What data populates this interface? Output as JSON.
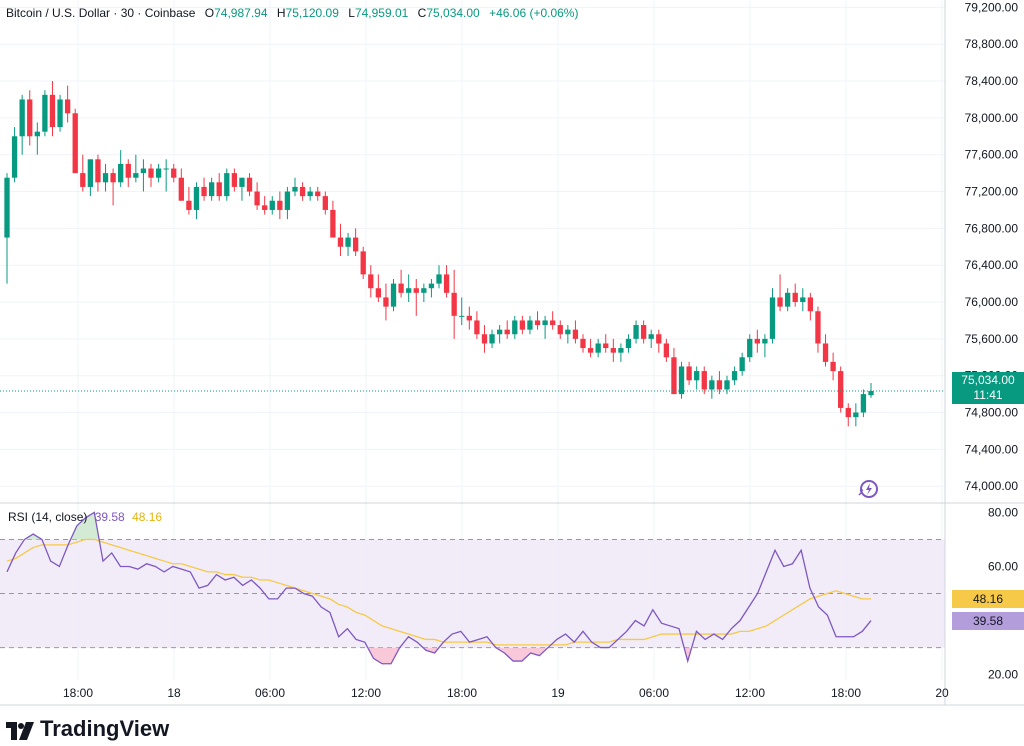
{
  "header": {
    "symbol": "Bitcoin / U.S. Dollar · 30 · Coinbase",
    "open_label": "O",
    "open": "74,987.94",
    "high_label": "H",
    "high": "75,120.09",
    "low_label": "L",
    "low": "74,959.01",
    "close_label": "C",
    "close": "75,034.00",
    "change": "+46.06 (+0.06%)"
  },
  "price_tag": {
    "price": "75,034.00",
    "countdown": "11:41"
  },
  "rsi_legend": {
    "label": "RSI (14, close)",
    "rsi": "39.58",
    "ma": "48.16"
  },
  "rsi_tags": {
    "ma": "48.16",
    "rsi": "39.58"
  },
  "brand": "TradingView",
  "colors": {
    "up": "#089981",
    "down": "#f23645",
    "rsi": "#7e57c2",
    "rsi_ma": "#f7c948",
    "band": "#ede7f6"
  },
  "chart_data": [
    {
      "type": "candlestick",
      "title": "Bitcoin / U.S. Dollar · 30 · Coinbase",
      "y_ticks": [
        "79,200.00",
        "78,800.00",
        "78,400.00",
        "78,000.00",
        "77,600.00",
        "77,200.00",
        "76,800.00",
        "76,400.00",
        "76,000.00",
        "75,600.00",
        "75,200.00",
        "74,800.00",
        "74,400.00",
        "74,000.00"
      ],
      "ylim": [
        73850,
        79280
      ],
      "x_ticks": [
        "18:00",
        "18",
        "06:00",
        "12:00",
        "18:00",
        "19",
        "06:00",
        "12:00",
        "18:00",
        "20"
      ],
      "last_price": 75034,
      "candles": [
        [
          76700,
          77400,
          76200,
          77350
        ],
        [
          77350,
          77900,
          77300,
          77800
        ],
        [
          77800,
          78250,
          77600,
          78200
        ],
        [
          78200,
          78300,
          77700,
          77800
        ],
        [
          77800,
          77950,
          77600,
          77850
        ],
        [
          77850,
          78300,
          77800,
          78250
        ],
        [
          78250,
          78400,
          77800,
          77900
        ],
        [
          77900,
          78250,
          77850,
          78200
        ],
        [
          78200,
          78350,
          77950,
          78050
        ],
        [
          78050,
          78100,
          77400,
          77400
        ],
        [
          77400,
          77600,
          77200,
          77250
        ],
        [
          77250,
          77550,
          77150,
          77550
        ],
        [
          77550,
          77600,
          77200,
          77300
        ],
        [
          77300,
          77500,
          77200,
          77400
        ],
        [
          77400,
          77450,
          77050,
          77300
        ],
        [
          77300,
          77650,
          77250,
          77500
        ],
        [
          77500,
          77550,
          77250,
          77350
        ],
        [
          77350,
          77600,
          77300,
          77400
        ],
        [
          77400,
          77550,
          77200,
          77450
        ],
        [
          77450,
          77500,
          77250,
          77350
        ],
        [
          77350,
          77500,
          77300,
          77450
        ],
        [
          77450,
          77550,
          77200,
          77450
        ],
        [
          77450,
          77500,
          77300,
          77350
        ],
        [
          77350,
          77450,
          77100,
          77100
        ],
        [
          77100,
          77250,
          76950,
          77000
        ],
        [
          77000,
          77300,
          76900,
          77250
        ],
        [
          77250,
          77350,
          77100,
          77150
        ],
        [
          77150,
          77350,
          77100,
          77300
        ],
        [
          77300,
          77400,
          77100,
          77150
        ],
        [
          77150,
          77450,
          77100,
          77400
        ],
        [
          77400,
          77450,
          77200,
          77250
        ],
        [
          77250,
          77350,
          77100,
          77350
        ],
        [
          77350,
          77400,
          77150,
          77200
        ],
        [
          77200,
          77300,
          77000,
          77050
        ],
        [
          77050,
          77150,
          76950,
          77000
        ],
        [
          77000,
          77150,
          76950,
          77100
        ],
        [
          77100,
          77200,
          76900,
          77000
        ],
        [
          77000,
          77250,
          76900,
          77200
        ],
        [
          77200,
          77350,
          77150,
          77250
        ],
        [
          77250,
          77300,
          77100,
          77150
        ],
        [
          77150,
          77250,
          77100,
          77200
        ],
        [
          77200,
          77250,
          77100,
          77150
        ],
        [
          77150,
          77200,
          76950,
          77000
        ],
        [
          77000,
          77100,
          76700,
          76700
        ],
        [
          76700,
          76850,
          76500,
          76600
        ],
        [
          76600,
          76750,
          76500,
          76700
        ],
        [
          76700,
          76800,
          76500,
          76550
        ],
        [
          76550,
          76600,
          76250,
          76300
        ],
        [
          76300,
          76400,
          76050,
          76150
        ],
        [
          76150,
          76300,
          76000,
          76050
        ],
        [
          76050,
          76200,
          75800,
          75950
        ],
        [
          75950,
          76250,
          75900,
          76200
        ],
        [
          76200,
          76350,
          76050,
          76100
        ],
        [
          76100,
          76300,
          76000,
          76150
        ],
        [
          76150,
          76250,
          75850,
          76100
        ],
        [
          76100,
          76200,
          76000,
          76150
        ],
        [
          76150,
          76250,
          76050,
          76200
        ],
        [
          76200,
          76400,
          76150,
          76300
        ],
        [
          76300,
          76400,
          76050,
          76100
        ],
        [
          76100,
          76350,
          75600,
          75850
        ],
        [
          75850,
          76050,
          75750,
          75850
        ],
        [
          75850,
          75950,
          75700,
          75800
        ],
        [
          75800,
          75900,
          75600,
          75650
        ],
        [
          75650,
          75750,
          75450,
          75550
        ],
        [
          75550,
          75700,
          75500,
          75650
        ],
        [
          75650,
          75750,
          75550,
          75700
        ],
        [
          75700,
          75800,
          75600,
          75650
        ],
        [
          75650,
          75850,
          75600,
          75800
        ],
        [
          75800,
          75850,
          75650,
          75700
        ],
        [
          75700,
          75850,
          75650,
          75800
        ],
        [
          75800,
          75900,
          75700,
          75750
        ],
        [
          75750,
          75850,
          75600,
          75800
        ],
        [
          75800,
          75900,
          75700,
          75750
        ],
        [
          75750,
          75800,
          75600,
          75650
        ],
        [
          75650,
          75750,
          75550,
          75700
        ],
        [
          75700,
          75800,
          75550,
          75600
        ],
        [
          75600,
          75650,
          75450,
          75500
        ],
        [
          75500,
          75600,
          75400,
          75450
        ],
        [
          75450,
          75600,
          75400,
          75550
        ],
        [
          75550,
          75650,
          75450,
          75500
        ],
        [
          75500,
          75600,
          75350,
          75450
        ],
        [
          75450,
          75550,
          75350,
          75500
        ],
        [
          75500,
          75650,
          75450,
          75600
        ],
        [
          75600,
          75800,
          75550,
          75750
        ],
        [
          75750,
          75800,
          75550,
          75600
        ],
        [
          75600,
          75700,
          75500,
          75650
        ],
        [
          75650,
          75700,
          75450,
          75550
        ],
        [
          75550,
          75600,
          75350,
          75400
        ],
        [
          75400,
          75500,
          75000,
          75000
        ],
        [
          75000,
          75350,
          74950,
          75300
        ],
        [
          75300,
          75350,
          75100,
          75150
        ],
        [
          75150,
          75300,
          75050,
          75250
        ],
        [
          75250,
          75300,
          75000,
          75050
        ],
        [
          75050,
          75200,
          74950,
          75150
        ],
        [
          75150,
          75250,
          75000,
          75050
        ],
        [
          75050,
          75200,
          75000,
          75150
        ],
        [
          75150,
          75300,
          75100,
          75250
        ],
        [
          75250,
          75450,
          75200,
          75400
        ],
        [
          75400,
          75650,
          75350,
          75600
        ],
        [
          75600,
          75700,
          75450,
          75550
        ],
        [
          75550,
          75650,
          75400,
          75600
        ],
        [
          75600,
          76150,
          75550,
          76050
        ],
        [
          76050,
          76300,
          75900,
          75950
        ],
        [
          75950,
          76150,
          75900,
          76100
        ],
        [
          76100,
          76200,
          75950,
          76000
        ],
        [
          76000,
          76150,
          75900,
          76050
        ],
        [
          76050,
          76100,
          75800,
          75900
        ],
        [
          75900,
          75950,
          75450,
          75550
        ],
        [
          75550,
          75650,
          75300,
          75350
        ],
        [
          75350,
          75450,
          75150,
          75250
        ],
        [
          75250,
          75300,
          74800,
          74850
        ],
        [
          74850,
          74900,
          74650,
          74750
        ],
        [
          74750,
          74900,
          74650,
          74800
        ],
        [
          74800,
          75050,
          74750,
          75000
        ],
        [
          74988,
          75120,
          74959,
          75034
        ]
      ]
    },
    {
      "type": "line",
      "title": "RSI (14, close)",
      "y_ticks": [
        "80.00",
        "60.00",
        "40.00",
        "20.00"
      ],
      "ylim": [
        18,
        82
      ],
      "bands": [
        70,
        50,
        30
      ],
      "series": [
        {
          "name": "RSI",
          "values": [
            58,
            65,
            70,
            72,
            70,
            62,
            60,
            68,
            75,
            78,
            80,
            62,
            65,
            60,
            60,
            59,
            61,
            60,
            58,
            60,
            59,
            58,
            52,
            53,
            57,
            55,
            56,
            53,
            55,
            52,
            48,
            48,
            52,
            52,
            50,
            49,
            45,
            43,
            34,
            37,
            33,
            32,
            26,
            24,
            24,
            30,
            34,
            32,
            29,
            28,
            32,
            35,
            36,
            32,
            33,
            34,
            30,
            28,
            25,
            25,
            28,
            27,
            30,
            33,
            35,
            32,
            36,
            32,
            30,
            30,
            33,
            36,
            40,
            38,
            44,
            39,
            38,
            37,
            25,
            36,
            33,
            35,
            33,
            37,
            40,
            45,
            50,
            58,
            66,
            60,
            61,
            66,
            52,
            45,
            42,
            34,
            34,
            34,
            36,
            40
          ]
        },
        {
          "name": "MA",
          "values": [
            62,
            63,
            65,
            67,
            68,
            68,
            68,
            68,
            69,
            70,
            70,
            69,
            68,
            67,
            66,
            65,
            64,
            63,
            62,
            61,
            61,
            60,
            59,
            58,
            58,
            57,
            57,
            56,
            56,
            55,
            55,
            54,
            53,
            52,
            51,
            50,
            49,
            48,
            46,
            45,
            43,
            42,
            40,
            38,
            37,
            36,
            35,
            34,
            33,
            33,
            32,
            32,
            32,
            32,
            32,
            32,
            31,
            31,
            31,
            31,
            31,
            31,
            31,
            31,
            31,
            32,
            32,
            32,
            32,
            32,
            33,
            33,
            33,
            33,
            34,
            35,
            35,
            35,
            35,
            35,
            35,
            35,
            35,
            35,
            36,
            36,
            37,
            38,
            40,
            42,
            44,
            46,
            48,
            49,
            50,
            51,
            50,
            49,
            48,
            48
          ]
        }
      ]
    }
  ]
}
